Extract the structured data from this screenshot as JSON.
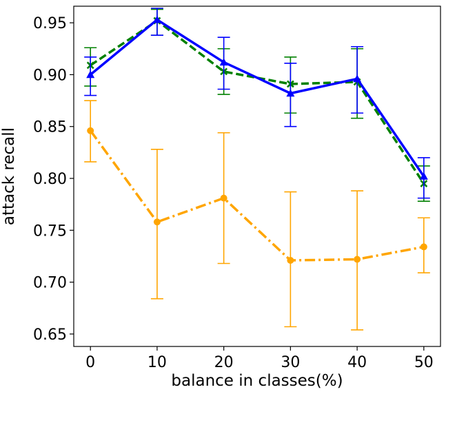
{
  "chart_data": {
    "type": "line",
    "xlabel": "balance in classes(%)",
    "ylabel": "attack recall",
    "xlim": [
      -2.5,
      52.5
    ],
    "ylim": [
      0.638,
      0.966
    ],
    "x": [
      0,
      10,
      20,
      30,
      40,
      50
    ],
    "xticks": [
      "0",
      "10",
      "20",
      "30",
      "40",
      "50"
    ],
    "yticks": [
      "0.65",
      "0.70",
      "0.75",
      "0.80",
      "0.85",
      "0.90",
      "0.95"
    ],
    "grid": false,
    "series": [
      {
        "color": "#0000ff",
        "linestyle": "solid",
        "marker": "triangle",
        "values": [
          0.9,
          0.953,
          0.912,
          0.882,
          0.896,
          0.802
        ],
        "err_low": [
          0.88,
          0.938,
          0.886,
          0.85,
          0.863,
          0.781
        ],
        "err_high": [
          0.917,
          0.964,
          0.936,
          0.911,
          0.927,
          0.82
        ]
      },
      {
        "color": "#008000",
        "linestyle": "dashed",
        "marker": "x",
        "values": [
          0.909,
          0.952,
          0.903,
          0.891,
          0.893,
          0.795
        ],
        "err_low": [
          0.889,
          0.938,
          0.881,
          0.863,
          0.858,
          0.778
        ],
        "err_high": [
          0.926,
          0.963,
          0.925,
          0.917,
          0.925,
          0.812
        ]
      },
      {
        "color": "#ffa500",
        "linestyle": "dashdot",
        "marker": "circle",
        "values": [
          0.846,
          0.758,
          0.781,
          0.721,
          0.722,
          0.734
        ],
        "err_low": [
          0.816,
          0.684,
          0.718,
          0.657,
          0.654,
          0.709
        ],
        "err_high": [
          0.875,
          0.828,
          0.844,
          0.787,
          0.788,
          0.762
        ]
      }
    ]
  }
}
